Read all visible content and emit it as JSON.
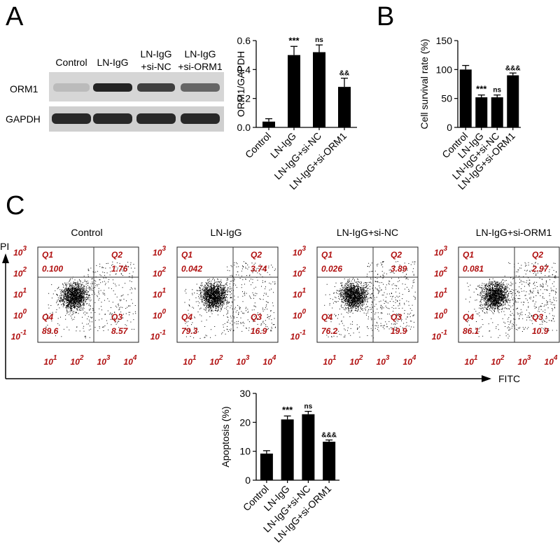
{
  "panels": {
    "a": "A",
    "b": "B",
    "c": "C"
  },
  "western_blot": {
    "lane_labels": [
      {
        "line1": "Control",
        "line2": ""
      },
      {
        "line1": "LN-IgG",
        "line2": ""
      },
      {
        "line1": "LN-IgG",
        "line2": "+si-NC"
      },
      {
        "line1": "LN-IgG",
        "line2": "+si-ORM1"
      }
    ],
    "row_labels": [
      "ORM1",
      "GAPDH"
    ],
    "orm1_band_intensity": [
      0.15,
      0.95,
      0.8,
      0.6
    ],
    "gapdh_band_intensity": [
      1,
      1,
      1,
      1
    ]
  },
  "flow": {
    "samples": [
      {
        "title": "Control",
        "q1": "0.100",
        "q2": "1.76",
        "q3": "8.57",
        "q4": "89.6"
      },
      {
        "title": "LN-IgG",
        "q1": "0.042",
        "q2": "3.74",
        "q3": "16.9",
        "q4": "79.3"
      },
      {
        "title": "LN-IgG+si-NC",
        "q1": "0.026",
        "q2": "3.89",
        "q3": "19.9",
        "q4": "76.2"
      },
      {
        "title": "LN-IgG+si-ORM1",
        "q1": "0.081",
        "q2": "2.97",
        "q3": "10.9",
        "q4": "86.1"
      }
    ],
    "quadrant_names": [
      "Q1",
      "Q2",
      "Q3",
      "Q4"
    ],
    "y_ticks": [
      {
        "base": "10",
        "exp": "3"
      },
      {
        "base": "10",
        "exp": "2"
      },
      {
        "base": "10",
        "exp": "1"
      },
      {
        "base": "10",
        "exp": "0"
      },
      {
        "base": "10",
        "exp": "-1"
      }
    ],
    "x_ticks": [
      {
        "base": "10",
        "exp": "1"
      },
      {
        "base": "10",
        "exp": "2"
      },
      {
        "base": "10",
        "exp": "3"
      },
      {
        "base": "10",
        "exp": "4"
      }
    ],
    "y_axis_label": "PI",
    "x_axis_label": "FITC"
  },
  "colors": {
    "bar": "#000000",
    "flow_text": "#b01010",
    "gate_line": "#333333"
  },
  "chart_data": [
    {
      "type": "bar",
      "id": "orm1",
      "categories": [
        "Control",
        "LN-IgG",
        "LN-IgG+si-NC",
        "LN-IgG+si-ORM1"
      ],
      "values": [
        0.04,
        0.5,
        0.52,
        0.28
      ],
      "errors": [
        0.02,
        0.06,
        0.05,
        0.06
      ],
      "annotations": [
        "",
        "***",
        "ns",
        "&&"
      ],
      "ylabel": "ORM1/GAPDH",
      "ylim": [
        0,
        0.6
      ],
      "yticks": [
        0.0,
        0.2,
        0.4,
        0.6
      ],
      "ytick_labels": [
        "0.0",
        "0.2",
        "0.4",
        "0.6"
      ]
    },
    {
      "type": "bar",
      "id": "survival",
      "categories": [
        "Control",
        "LN-IgG",
        "LN-IgG+si-NC",
        "LN-IgG+si-ORM1"
      ],
      "values": [
        100,
        52,
        52,
        90
      ],
      "errors": [
        7,
        4,
        4,
        4
      ],
      "annotations": [
        "",
        "***",
        "ns",
        "&&&"
      ],
      "ylabel": "Cell survival rate (%)",
      "ylim": [
        0,
        150
      ],
      "yticks": [
        0,
        50,
        100,
        150
      ],
      "ytick_labels": [
        "0",
        "50",
        "100",
        "150"
      ]
    },
    {
      "type": "bar",
      "id": "apoptosis",
      "categories": [
        "Control",
        "LN-IgG",
        "LN-IgG+si-NC",
        "LN-IgG+si-ORM1"
      ],
      "values": [
        9.2,
        21,
        22.8,
        13.3
      ],
      "errors": [
        1.0,
        1.2,
        1.0,
        0.6
      ],
      "annotations": [
        "",
        "***",
        "ns",
        "&&&"
      ],
      "ylabel": "Apoptosis (%)",
      "ylim": [
        0,
        30
      ],
      "yticks": [
        0,
        10,
        20,
        30
      ],
      "ytick_labels": [
        "0",
        "10",
        "20",
        "30"
      ]
    }
  ]
}
